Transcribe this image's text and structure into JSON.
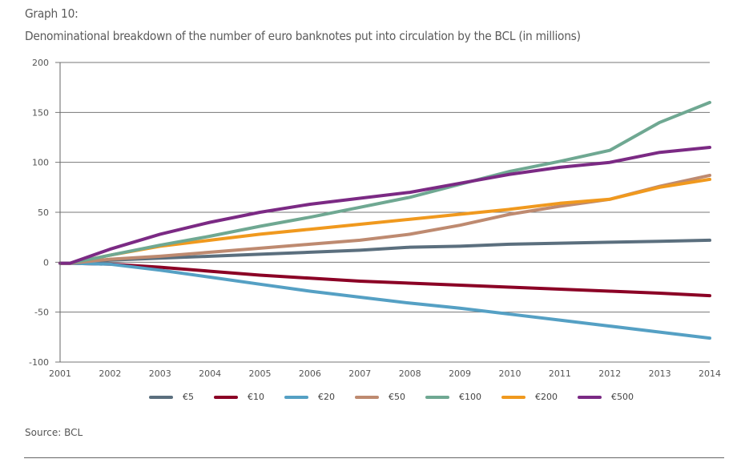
{
  "header": {
    "graph_number": "Graph 10:",
    "title": "Denominational breakdown of the number of euro banknotes put into circulation by the BCL (in millions)"
  },
  "footer": {
    "source": "Source: BCL"
  },
  "chart_data": {
    "type": "line",
    "title": "Denominational breakdown of the number of euro banknotes put into circulation by the BCL (in millions)",
    "xlabel": "",
    "ylabel": "",
    "x": [
      2001,
      2002,
      2003,
      2004,
      2005,
      2006,
      2007,
      2008,
      2009,
      2010,
      2011,
      2012,
      2013,
      2014
    ],
    "x_tick_labels": [
      "2001",
      "2002",
      "2003",
      "2004",
      "2005",
      "2006",
      "2007",
      "2008",
      "2009",
      "2010",
      "2011",
      "2012",
      "2013",
      "2014"
    ],
    "xlim": [
      2001,
      2014
    ],
    "ylim": [
      -100,
      200
    ],
    "y_ticks": [
      -100,
      -50,
      0,
      50,
      100,
      150,
      200
    ],
    "y_tick_labels": [
      "-100",
      "-50",
      "0",
      "50",
      "100",
      "150",
      "200"
    ],
    "grid": "horizontal",
    "legend_position": "bottom",
    "series": [
      {
        "name": "€5",
        "color": "#5b6f7e",
        "values": [
          0,
          2,
          4,
          6,
          8,
          10,
          12,
          15,
          16,
          18,
          19,
          20,
          21,
          22
        ]
      },
      {
        "name": "€10",
        "color": "#8b0025",
        "values": [
          0,
          -2,
          -5,
          -9,
          -13,
          -16,
          -19,
          -21,
          -23,
          -25,
          -27,
          -29,
          -31,
          -33.5
        ]
      },
      {
        "name": "€20",
        "color": "#55a0c4",
        "values": [
          0,
          -2,
          -8,
          -15,
          -22,
          -29,
          -35,
          -41,
          -46,
          -52,
          -58,
          -64,
          -70,
          -76
        ]
      },
      {
        "name": "€50",
        "color": "#be8a70",
        "values": [
          0,
          3,
          6,
          10,
          14,
          18,
          22,
          28,
          37,
          48,
          56,
          63,
          76,
          87
        ]
      },
      {
        "name": "€100",
        "color": "#6fa892",
        "values": [
          0,
          7,
          17,
          26,
          36,
          45,
          55,
          65,
          78,
          91,
          101,
          112,
          140,
          160
        ]
      },
      {
        "name": "€200",
        "color": "#f0991e",
        "values": [
          0,
          7,
          16,
          22,
          28,
          33,
          38,
          43,
          48,
          53,
          59,
          63,
          75,
          83
        ]
      },
      {
        "name": "€500",
        "color": "#7b2a84",
        "values": [
          0,
          13,
          28,
          40,
          50,
          58,
          64,
          70,
          79,
          88,
          95,
          100,
          110,
          115
        ]
      }
    ]
  }
}
